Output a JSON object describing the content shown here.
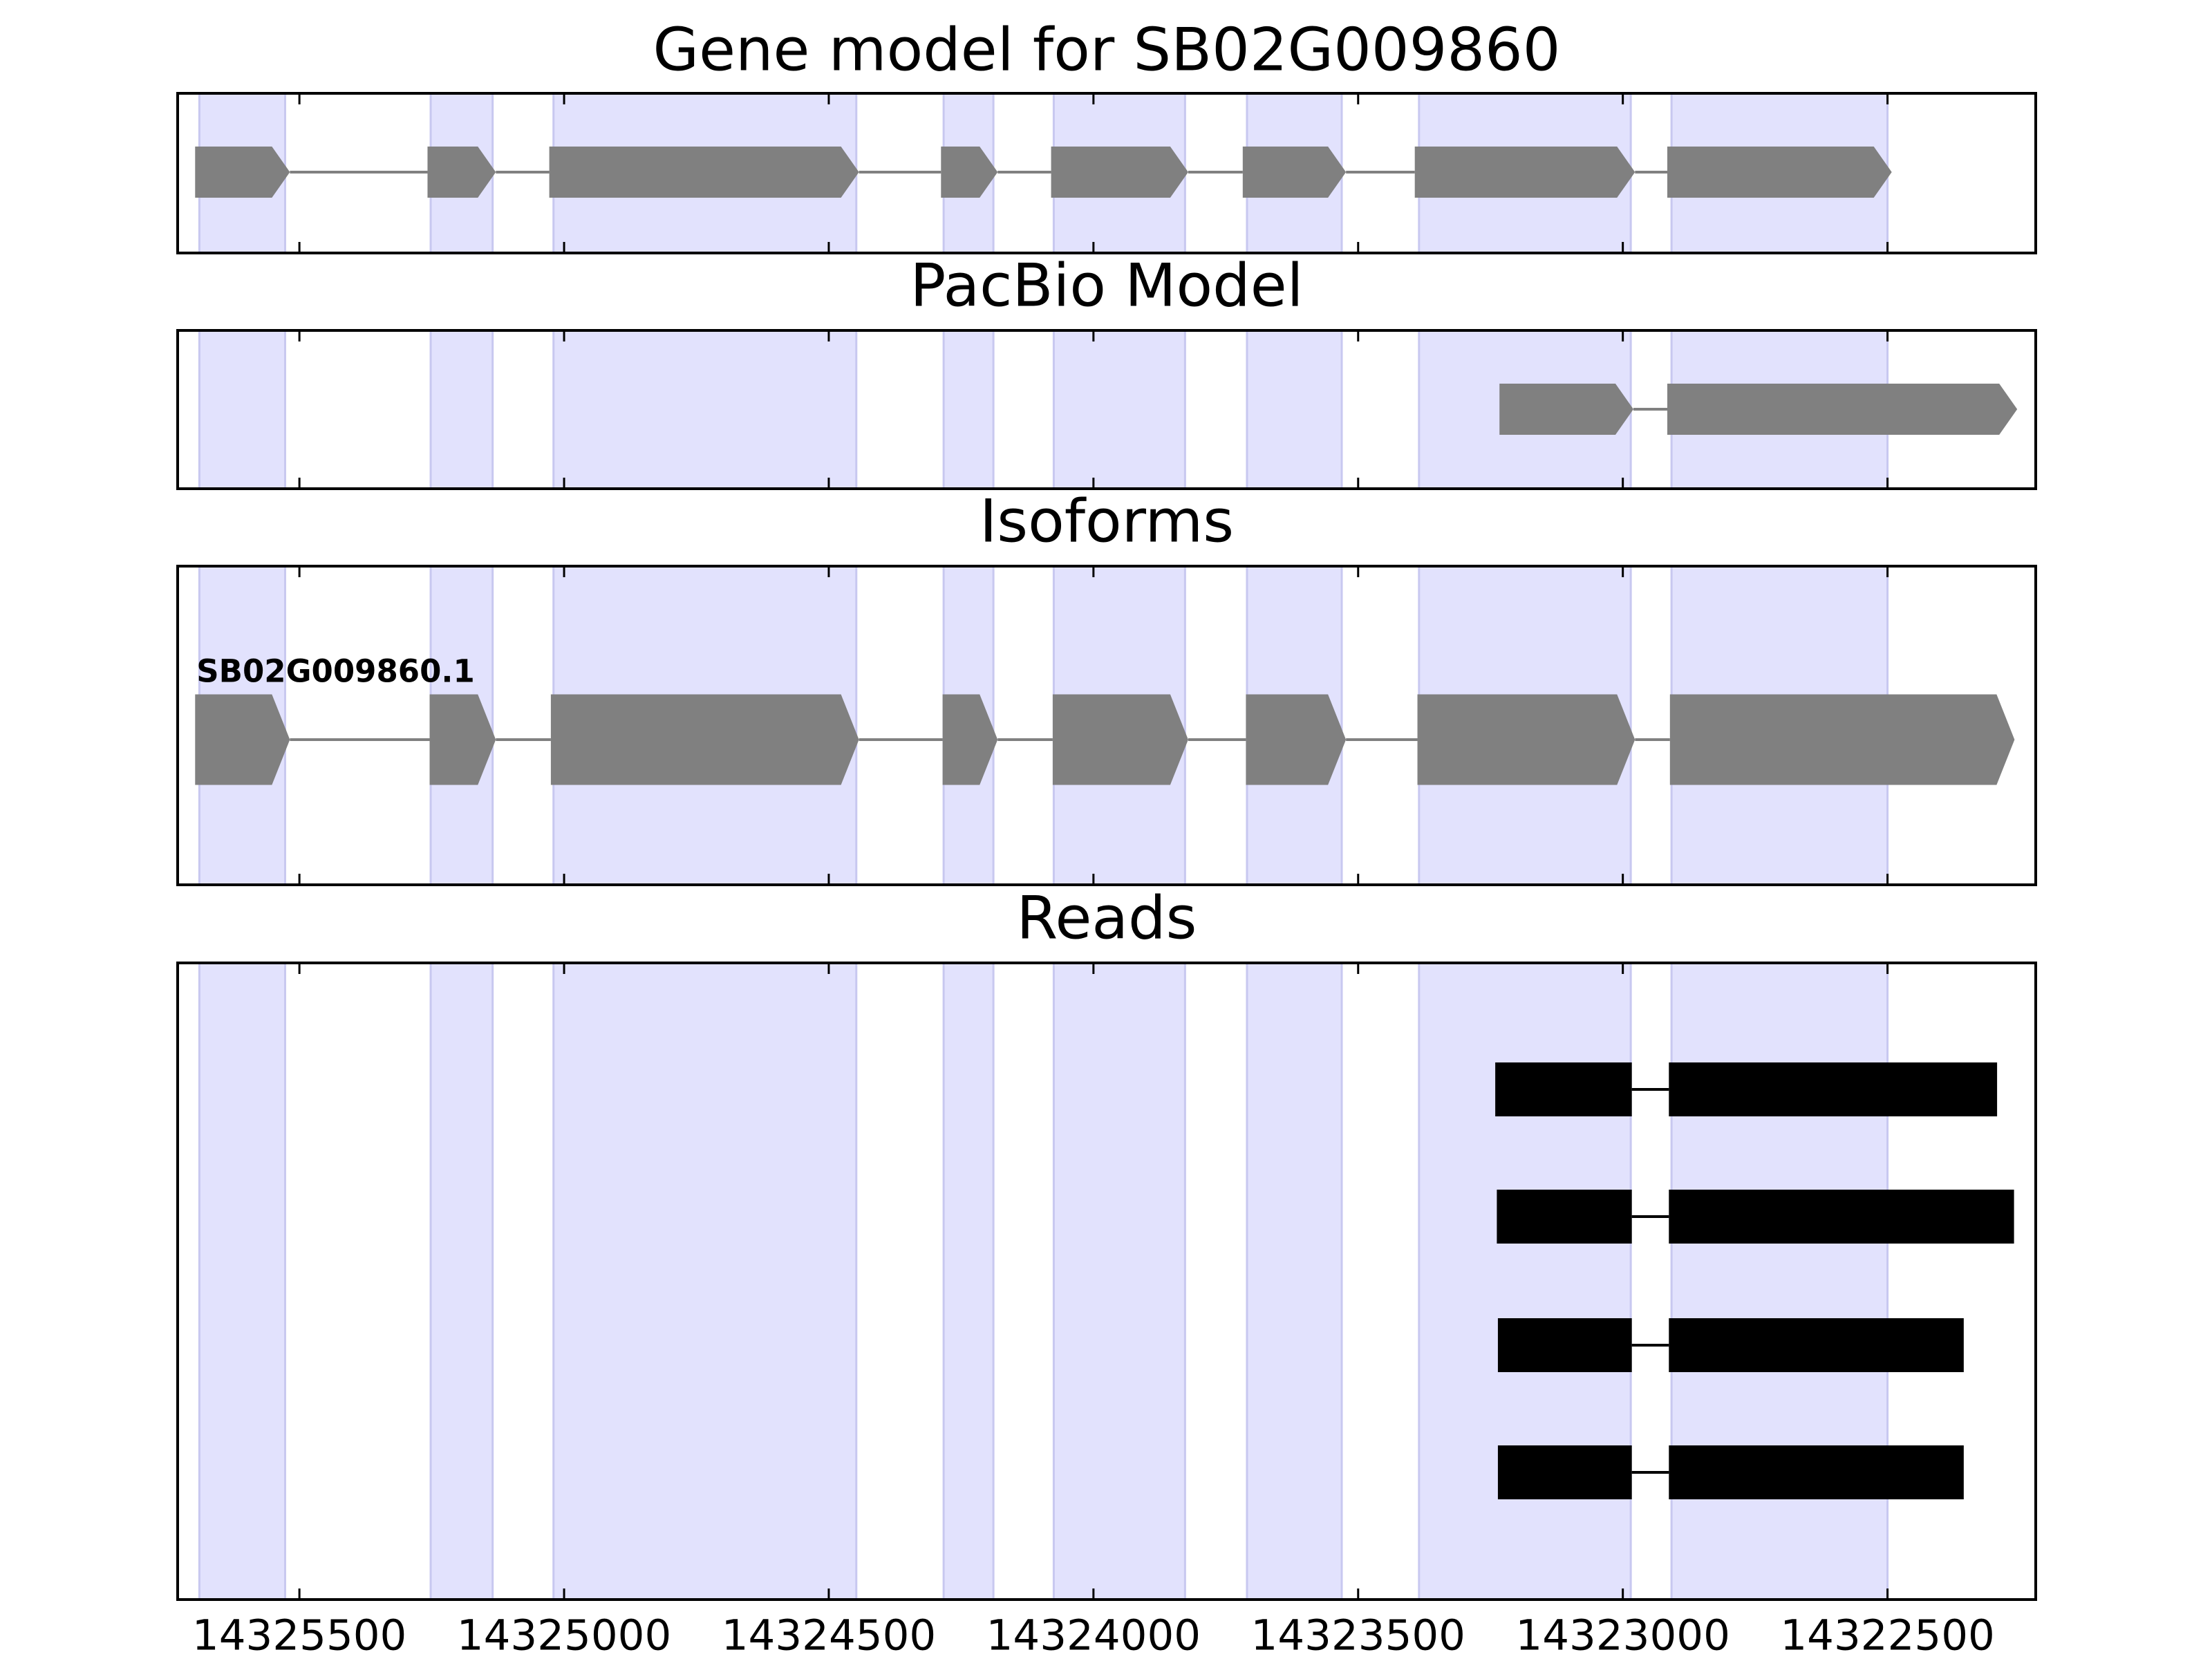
{
  "chart_data": {
    "type": "gene",
    "xlim": [
      14325730,
      14322220
    ],
    "xticks": [
      14325500,
      14325000,
      14324500,
      14324000,
      14323500,
      14323000,
      14322500
    ],
    "band_color": "#e2e2fd",
    "exon_bands": [
      [
        14325689,
        14325527
      ],
      [
        14325252,
        14325135
      ],
      [
        14325020,
        14324448
      ],
      [
        14324283,
        14324189
      ],
      [
        14324075,
        14323827
      ],
      [
        14323710,
        14323531
      ],
      [
        14323385,
        14322985
      ],
      [
        14322908,
        14322500
      ]
    ],
    "panels": [
      {
        "title": "Gene model for SB02G009860",
        "color": "#808080",
        "shape": "arrow",
        "features": [
          {
            "exons": [
              [
                14325697,
                14325518
              ],
              [
                14325258,
                14325129
              ],
              [
                14325028,
                14324443
              ],
              [
                14324288,
                14324181
              ],
              [
                14324080,
                14323821
              ],
              [
                14323718,
                14323523
              ],
              [
                14323393,
                14322977
              ],
              [
                14322916,
                14322492
              ]
            ]
          }
        ]
      },
      {
        "title": "PacBio Model",
        "color": "#808080",
        "shape": "arrow",
        "features": [
          {
            "exons": [
              [
                14323233,
                14322980
              ],
              [
                14322916,
                14322255
              ]
            ]
          }
        ]
      },
      {
        "title": "Isoforms",
        "color": "#808080",
        "shape": "arrow",
        "features": [
          {
            "name": "SB02G009860.1",
            "exons": [
              [
                14325697,
                14325518
              ],
              [
                14325254,
                14325129
              ],
              [
                14325025,
                14324443
              ],
              [
                14324285,
                14324181
              ],
              [
                14324077,
                14323821
              ],
              [
                14323712,
                14323523
              ],
              [
                14323388,
                14322977
              ],
              [
                14322911,
                14322260
              ]
            ]
          }
        ]
      },
      {
        "title": "Reads",
        "color": "#000000",
        "shape": "box",
        "features": [
          {
            "exons": [
              [
                14323241,
                14322983
              ],
              [
                14322913,
                14322293
              ]
            ]
          },
          {
            "exons": [
              [
                14323238,
                14322983
              ],
              [
                14322913,
                14322261
              ]
            ]
          },
          {
            "exons": [
              [
                14323236,
                14322983
              ],
              [
                14322913,
                14322356
              ]
            ]
          },
          {
            "exons": [
              [
                14323236,
                14322983
              ],
              [
                14322913,
                14322356
              ]
            ]
          }
        ]
      }
    ]
  }
}
